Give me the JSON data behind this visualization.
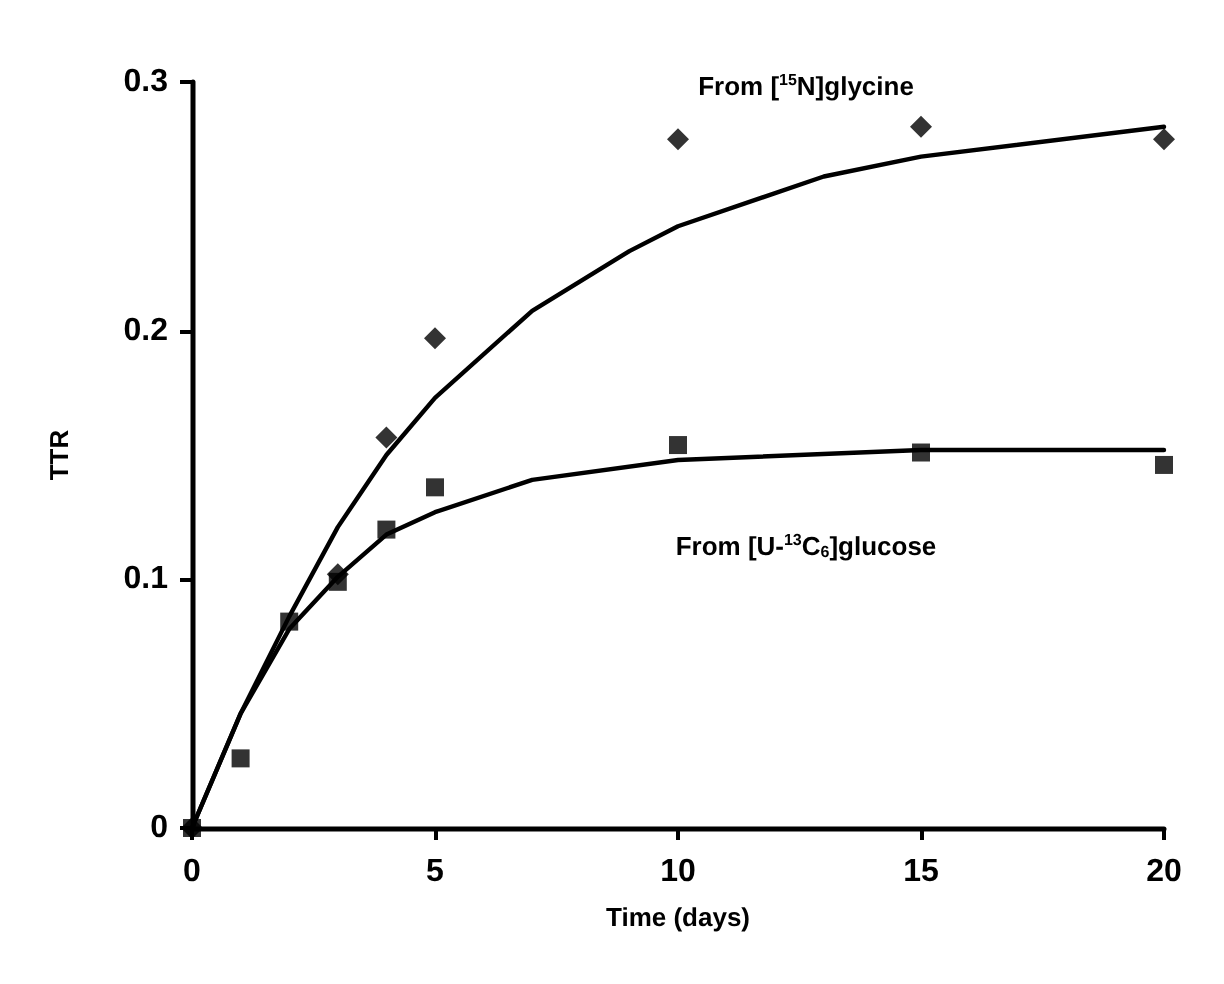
{
  "chart_data": {
    "type": "scatter",
    "xlabel": "Time (days)",
    "ylabel": "TTR",
    "xlim": [
      0,
      20
    ],
    "xticks": [
      0,
      5,
      10,
      15,
      20
    ],
    "ylim": [
      0,
      0.3
    ],
    "yticks": [
      0,
      0.1,
      0.2,
      0.3
    ],
    "grid": false,
    "series": [
      {
        "marker": "square",
        "color": "#000000",
        "x": [
          0,
          1,
          2,
          3,
          4,
          5,
          10,
          15,
          20
        ],
        "values": [
          0,
          0.028,
          0.083,
          0.099,
          0.12,
          0.137,
          0.154,
          0.151,
          0.146
        ]
      },
      {
        "marker": "diamond",
        "color": "#000000",
        "x": [
          0,
          1,
          2,
          3,
          4,
          5,
          10,
          15,
          20
        ],
        "values": [
          0,
          null,
          null,
          0.102,
          0.157,
          0.197,
          0.277,
          0.282,
          0.277
        ]
      },
      {
        "type": "line",
        "marker": "none",
        "line_style": "solid",
        "color": "#000000",
        "x": [
          0,
          1,
          2,
          3,
          4,
          5,
          7,
          9,
          10,
          13,
          15,
          20
        ],
        "values": [
          0,
          0.046,
          0.085,
          0.121,
          0.15,
          0.173,
          0.208,
          0.232,
          0.242,
          0.262,
          0.27,
          0.282
        ]
      },
      {
        "type": "line",
        "marker": "none",
        "line_style": "solid",
        "color": "#000000",
        "x": [
          0,
          1,
          2,
          3,
          4,
          5,
          7,
          10,
          15,
          20
        ],
        "values": [
          0,
          0.046,
          0.08,
          0.101,
          0.118,
          0.127,
          0.14,
          0.148,
          0.152,
          0.152
        ]
      }
    ],
    "annotations": [
      "From [$^{15}$N]glycine",
      "From [U-$^{13}$C$_{6}$]glucose"
    ]
  }
}
